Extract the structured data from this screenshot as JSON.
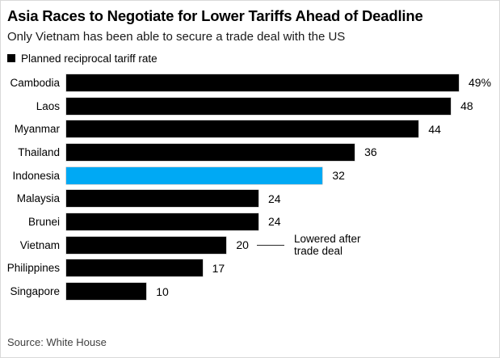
{
  "header": {
    "title": "Asia Races to Negotiate for Lower Tariffs Ahead of Deadline",
    "subtitle": "Only Vietnam has been able to secure a trade deal with the US"
  },
  "legend": {
    "label": "Planned reciprocal tariff rate",
    "swatch_color": "#000000"
  },
  "chart_data": {
    "type": "bar",
    "orientation": "horizontal",
    "title": "Asia Races to Negotiate for Lower Tariffs Ahead of Deadline",
    "subtitle": "Only Vietnam has been able to secure a trade deal with the US",
    "series_name": "Planned reciprocal tariff rate",
    "categories": [
      "Cambodia",
      "Laos",
      "Myanmar",
      "Thailand",
      "Indonesia",
      "Malaysia",
      "Brunei",
      "Vietnam",
      "Philippines",
      "Singapore"
    ],
    "values": [
      49,
      48,
      44,
      36,
      32,
      24,
      24,
      20,
      17,
      10
    ],
    "value_labels": [
      "49%",
      "48",
      "44",
      "36",
      "32",
      "24",
      "24",
      "20",
      "17",
      "10"
    ],
    "unit": "percent",
    "xlim": [
      0,
      49
    ],
    "grid": false,
    "legend_position": "top-left",
    "bar_color": "#000000",
    "highlight_color": "#00a9f4",
    "highlight_index": 4,
    "highlight_category": "Indonesia",
    "annotation": {
      "row_index": 7,
      "target_category": "Vietnam",
      "lines": [
        "Lowered after",
        "trade deal"
      ]
    }
  },
  "footer": {
    "source": "Source: White House"
  }
}
